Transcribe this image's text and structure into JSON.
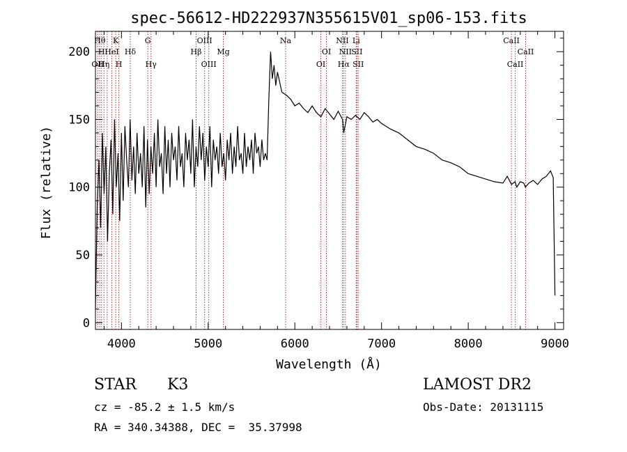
{
  "chart_data": {
    "type": "line",
    "title": "spec-56612-HD222937N355615V01_sp06-153.fits",
    "xlabel": "Wavelength (Å)",
    "ylabel": "Flux (relative)",
    "xlim": [
      3700,
      9100
    ],
    "ylim": [
      -5,
      215
    ],
    "xticks": [
      {
        "value": 4000,
        "label": "4000"
      },
      {
        "value": 5000,
        "label": "5000"
      },
      {
        "value": 6000,
        "label": "6000"
      },
      {
        "value": 7000,
        "label": "7000"
      },
      {
        "value": 8000,
        "label": "8000"
      },
      {
        "value": 9000,
        "label": "9000"
      }
    ],
    "yticks": [
      {
        "value": 0,
        "label": "0"
      },
      {
        "value": 50,
        "label": "50"
      },
      {
        "value": 100,
        "label": "100"
      },
      {
        "value": 150,
        "label": "150"
      },
      {
        "value": 200,
        "label": "200"
      }
    ],
    "grid": false,
    "series": [
      {
        "color": "#000000",
        "x": [
          3700,
          3720,
          3740,
          3760,
          3780,
          3800,
          3820,
          3840,
          3860,
          3880,
          3900,
          3920,
          3940,
          3960,
          3980,
          4000,
          4020,
          4040,
          4060,
          4080,
          4100,
          4120,
          4140,
          4160,
          4180,
          4200,
          4220,
          4240,
          4260,
          4280,
          4300,
          4320,
          4340,
          4360,
          4380,
          4400,
          4420,
          4440,
          4460,
          4480,
          4500,
          4520,
          4540,
          4560,
          4580,
          4600,
          4620,
          4640,
          4660,
          4680,
          4700,
          4720,
          4740,
          4760,
          4780,
          4800,
          4820,
          4840,
          4860,
          4880,
          4900,
          4920,
          4940,
          4960,
          4980,
          5000,
          5020,
          5040,
          5060,
          5080,
          5100,
          5120,
          5140,
          5160,
          5180,
          5200,
          5220,
          5240,
          5260,
          5280,
          5300,
          5320,
          5340,
          5360,
          5380,
          5400,
          5420,
          5440,
          5460,
          5480,
          5500,
          5520,
          5540,
          5560,
          5580,
          5600,
          5620,
          5640,
          5660,
          5680,
          5700,
          5720,
          5740,
          5760,
          5780,
          5800,
          5850,
          5900,
          5950,
          6000,
          6050,
          6100,
          6150,
          6200,
          6250,
          6300,
          6350,
          6400,
          6450,
          6500,
          6550,
          6563,
          6600,
          6650,
          6700,
          6750,
          6800,
          6850,
          6900,
          6950,
          7000,
          7100,
          7200,
          7300,
          7400,
          7500,
          7600,
          7700,
          7800,
          7900,
          8000,
          8100,
          8200,
          8300,
          8400,
          8450,
          8500,
          8540,
          8560,
          8600,
          8640,
          8660,
          8700,
          8750,
          8800,
          8850,
          8900,
          8950,
          8980,
          9000
        ],
        "y": [
          10,
          85,
          120,
          70,
          140,
          95,
          130,
          60,
          110,
          135,
          80,
          150,
          100,
          125,
          75,
          140,
          90,
          145,
          120,
          100,
          150,
          105,
          130,
          95,
          140,
          110,
          125,
          100,
          145,
          85,
          135,
          95,
          130,
          110,
          140,
          100,
          150,
          115,
          125,
          95,
          145,
          110,
          135,
          100,
          140,
          120,
          130,
          105,
          145,
          115,
          125,
          100,
          140,
          120,
          135,
          110,
          150,
          100,
          130,
          115,
          145,
          120,
          140,
          105,
          130,
          115,
          145,
          100,
          135,
          120,
          130,
          110,
          140,
          115,
          125,
          105,
          135,
          120,
          140,
          110,
          130,
          115,
          145,
          120,
          125,
          110,
          140,
          115,
          130,
          120,
          135,
          110,
          140,
          125,
          130,
          115,
          135,
          120,
          125,
          120,
          165,
          200,
          180,
          190,
          175,
          185,
          170,
          168,
          165,
          160,
          162,
          158,
          155,
          160,
          155,
          152,
          158,
          154,
          150,
          156,
          150,
          140,
          152,
          150,
          153,
          150,
          155,
          152,
          148,
          150,
          147,
          143,
          140,
          135,
          130,
          128,
          125,
          120,
          118,
          115,
          110,
          108,
          106,
          104,
          103,
          108,
          102,
          104,
          100,
          104,
          103,
          100,
          103,
          105,
          102,
          106,
          108,
          112,
          107,
          20
        ]
      }
    ],
    "lines": [
      {
        "x": 3726,
        "label": "OII",
        "row": 3
      },
      {
        "x": 3750,
        "label": "Hθ",
        "row": 1
      },
      {
        "x": 3770,
        "label": "H",
        "row": 2
      },
      {
        "x": 3798,
        "label": "Hη",
        "row": 3
      },
      {
        "x": 3835,
        "label": "",
        "row": 0
      },
      {
        "x": 3889,
        "label": "HeI",
        "row": 2
      },
      {
        "x": 3934,
        "label": "K",
        "row": 1
      },
      {
        "x": 3970,
        "label": "H",
        "row": 3
      },
      {
        "x": 4102,
        "label": "Hδ",
        "row": 2
      },
      {
        "x": 4304,
        "label": "G",
        "row": 1
      },
      {
        "x": 4341,
        "label": "Hγ",
        "row": 3
      },
      {
        "x": 4861,
        "label": "Hβ",
        "row": 2
      },
      {
        "x": 4959,
        "label": "OIII",
        "row": 1
      },
      {
        "x": 5007,
        "label": "OIII",
        "row": 3
      },
      {
        "x": 5175,
        "label": "Mg",
        "row": 2
      },
      {
        "x": 5894,
        "label": "Na",
        "row": 1
      },
      {
        "x": 6300,
        "label": "OI",
        "row": 3
      },
      {
        "x": 6364,
        "label": "OI",
        "row": 2
      },
      {
        "x": 6548,
        "label": "NII",
        "row": 1
      },
      {
        "x": 6563,
        "label": "Hα",
        "row": 3
      },
      {
        "x": 6583,
        "label": "NII",
        "row": 2
      },
      {
        "x": 6708,
        "label": "Li",
        "row": 1
      },
      {
        "x": 6716,
        "label": "SII",
        "row": 2
      },
      {
        "x": 6731,
        "label": "SII",
        "row": 3
      },
      {
        "x": 8498,
        "label": "CaII",
        "row": 1
      },
      {
        "x": 8542,
        "label": "CaII",
        "row": 3
      },
      {
        "x": 8662,
        "label": "CaII",
        "row": 2
      }
    ]
  },
  "info": {
    "class": "STAR",
    "subclass": "K3",
    "survey": "LAMOST DR2",
    "cz": "cz = -85.2 ± 1.5 km/s",
    "obs_date": "Obs-Date: 20131115",
    "coords": "RA = 340.34388, DEC =  35.37998"
  }
}
